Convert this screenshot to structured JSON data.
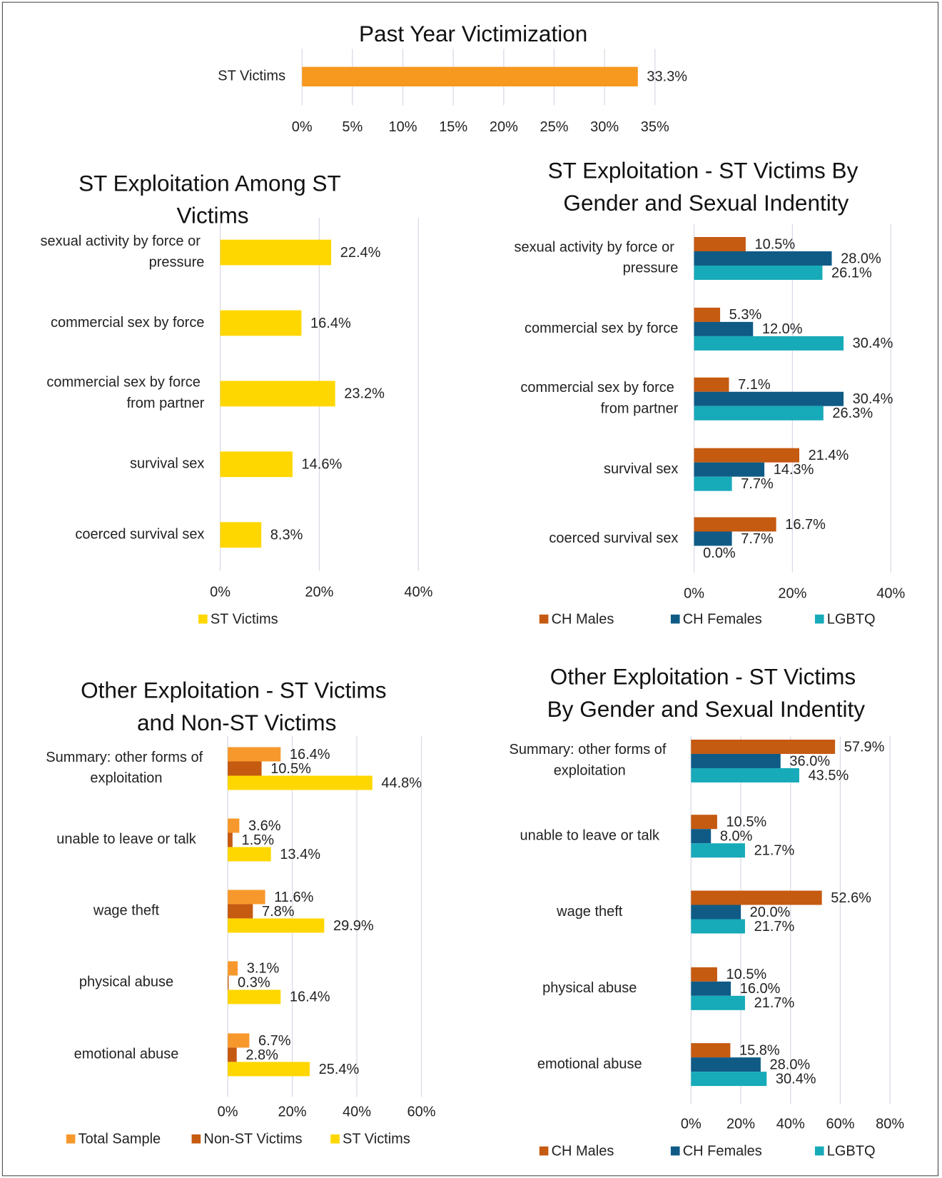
{
  "chart_data": [
    {
      "type": "bar",
      "orientation": "horizontal",
      "title": "Past Year Victimization",
      "categories": [
        "ST Victims"
      ],
      "series": [
        {
          "name": "ST Victims",
          "color": "#f7981f",
          "values": [
            33.3
          ],
          "value_labels": [
            "33.3%"
          ]
        }
      ],
      "xlim": [
        0,
        35
      ],
      "xticks": [
        {
          "value": 0,
          "label": "0%"
        },
        {
          "value": 5,
          "label": "5%"
        },
        {
          "value": 10,
          "label": "10%"
        },
        {
          "value": 15,
          "label": "15%"
        },
        {
          "value": 20,
          "label": "20%"
        },
        {
          "value": 25,
          "label": "25%"
        },
        {
          "value": 30,
          "label": "30%"
        },
        {
          "value": 35,
          "label": "35%"
        }
      ],
      "grid": true,
      "legend": false
    },
    {
      "type": "bar",
      "orientation": "horizontal",
      "title": "ST Exploitation Among ST Victims",
      "categories": [
        "sexual activity by force or pressure",
        "commercial sex by force",
        "commercial sex by force from partner",
        "survival sex",
        "coerced survival sex"
      ],
      "series": [
        {
          "name": "ST Victims",
          "color": "#ffd700",
          "values": [
            22.4,
            16.4,
            23.2,
            14.6,
            8.3
          ],
          "value_labels": [
            "22.4%",
            "16.4%",
            "23.2%",
            "14.6%",
            "8.3%"
          ]
        }
      ],
      "xlim": [
        0,
        40
      ],
      "xticks": [
        {
          "value": 0,
          "label": "0%"
        },
        {
          "value": 20,
          "label": "20%"
        },
        {
          "value": 40,
          "label": "40%"
        }
      ],
      "grid": true,
      "legend": "bottom"
    },
    {
      "type": "bar",
      "orientation": "horizontal",
      "title": "ST Exploitation - ST Victims By Gender and Sexual Indentity",
      "categories": [
        "sexual activity by force or pressure",
        "commercial sex by force",
        "commercial sex by force from partner",
        "survival sex",
        "coerced survival sex"
      ],
      "series": [
        {
          "name": "CH Males",
          "color": "#c55a11",
          "values": [
            10.5,
            5.3,
            7.1,
            21.4,
            16.7
          ],
          "value_labels": [
            "10.5%",
            "5.3%",
            "7.1%",
            "21.4%",
            "16.7%"
          ]
        },
        {
          "name": "CH Females",
          "color": "#0f5b86",
          "values": [
            28.0,
            12.0,
            30.4,
            14.3,
            7.7
          ],
          "value_labels": [
            "28.0%",
            "12.0%",
            "30.4%",
            "14.3%",
            "7.7%"
          ]
        },
        {
          "name": "LGBTQ",
          "color": "#17aab9",
          "values": [
            26.1,
            30.4,
            26.3,
            7.7,
            0.0
          ],
          "value_labels": [
            "26.1%",
            "30.4%",
            "26.3%",
            "7.7%",
            "0.0%"
          ]
        }
      ],
      "xlim": [
        0,
        40
      ],
      "xticks": [
        {
          "value": 0,
          "label": "0%"
        },
        {
          "value": 20,
          "label": "20%"
        },
        {
          "value": 40,
          "label": "40%"
        }
      ],
      "grid": true,
      "legend": "bottom"
    },
    {
      "type": "bar",
      "orientation": "horizontal",
      "title": "Other Exploitation - ST Victims and Non-ST Victims",
      "categories": [
        "Summary:  other forms of exploitation",
        "unable to leave or talk",
        "wage theft",
        "physical abuse",
        "emotional abuse"
      ],
      "series": [
        {
          "name": "Total Sample",
          "color": "#f7982c",
          "values": [
            16.4,
            3.6,
            11.6,
            3.1,
            6.7
          ],
          "value_labels": [
            "16.4%",
            "3.6%",
            "11.6%",
            "3.1%",
            "6.7%"
          ]
        },
        {
          "name": "Non-ST Victims",
          "color": "#c55a11",
          "values": [
            10.5,
            1.5,
            7.8,
            0.3,
            2.8
          ],
          "value_labels": [
            "10.5%",
            "1.5%",
            "7.8%",
            "0.3%",
            "2.8%"
          ]
        },
        {
          "name": "ST Victims",
          "color": "#ffd700",
          "values": [
            44.8,
            13.4,
            29.9,
            16.4,
            25.4
          ],
          "value_labels": [
            "44.8%",
            "13.4%",
            "29.9%",
            "16.4%",
            "25.4%"
          ]
        }
      ],
      "xlim": [
        0,
        60
      ],
      "xticks": [
        {
          "value": 0,
          "label": "0%"
        },
        {
          "value": 20,
          "label": "20%"
        },
        {
          "value": 40,
          "label": "40%"
        },
        {
          "value": 60,
          "label": "60%"
        }
      ],
      "grid": true,
      "legend": "bottom"
    },
    {
      "type": "bar",
      "orientation": "horizontal",
      "title": "Other Exploitation - ST Victims By Gender and Sexual Indentity",
      "categories": [
        "Summary:  other forms of exploitation",
        "unable to leave or talk",
        "wage theft",
        "physical abuse",
        "emotional abuse"
      ],
      "series": [
        {
          "name": "CH Males",
          "color": "#c55a11",
          "values": [
            57.9,
            10.5,
            52.6,
            10.5,
            15.8
          ],
          "value_labels": [
            "57.9%",
            "10.5%",
            "52.6%",
            "10.5%",
            "15.8%"
          ]
        },
        {
          "name": "CH Females",
          "color": "#0f5b86",
          "values": [
            36.0,
            8.0,
            20.0,
            16.0,
            28.0
          ],
          "value_labels": [
            "36.0%",
            "8.0%",
            "20.0%",
            "16.0%",
            "28.0%"
          ]
        },
        {
          "name": "LGBTQ",
          "color": "#17aab9",
          "values": [
            43.5,
            21.7,
            21.7,
            21.7,
            30.4
          ],
          "value_labels": [
            "43.5%",
            "21.7%",
            "21.7%",
            "21.7%",
            "30.4%"
          ]
        }
      ],
      "xlim": [
        0,
        80
      ],
      "xticks": [
        {
          "value": 0,
          "label": "0%"
        },
        {
          "value": 20,
          "label": "20%"
        },
        {
          "value": 40,
          "label": "40%"
        },
        {
          "value": 60,
          "label": "60%"
        },
        {
          "value": 80,
          "label": "80%"
        }
      ],
      "grid": true,
      "legend": "bottom"
    }
  ]
}
